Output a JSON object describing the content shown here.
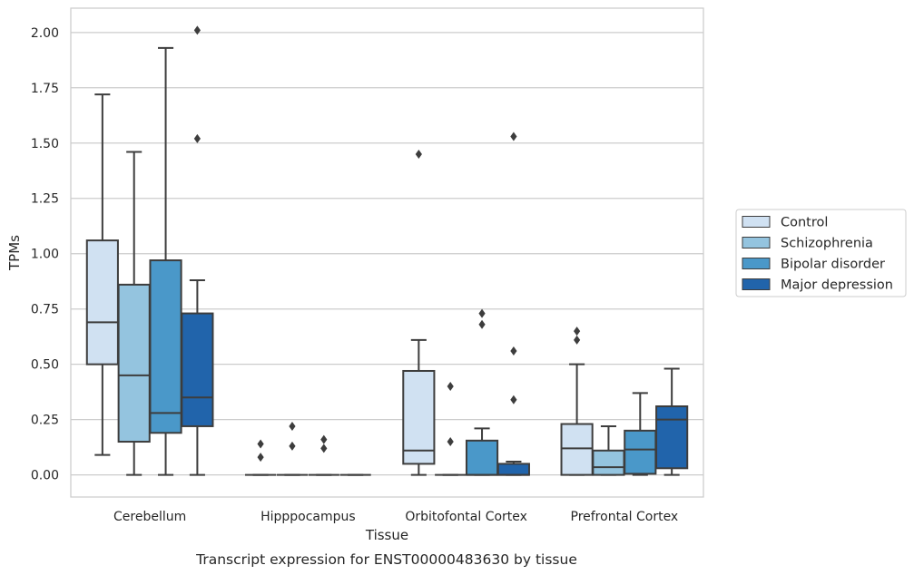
{
  "chart_data": {
    "type": "boxplot",
    "xlabel": "Tissue",
    "ylabel": "TPMs",
    "caption": "Transcript expression for ENST00000483630 by tissue",
    "ylim": [
      -0.1,
      2.11
    ],
    "yticks": [
      0.0,
      0.25,
      0.5,
      0.75,
      1.0,
      1.25,
      1.5,
      1.75,
      2.0
    ],
    "ytick_labels": [
      "0.00",
      "0.25",
      "0.50",
      "0.75",
      "1.00",
      "1.25",
      "1.50",
      "1.75",
      "2.00"
    ],
    "grid": "horizontal",
    "legend_position": "right",
    "categories": [
      "Cerebellum",
      "Hipppocampus",
      "Orbitofontal Cortex",
      "Prefrontal Cortex"
    ],
    "series": [
      {
        "name": "Control",
        "color": "#d0e1f2",
        "boxes": [
          {
            "whislo": 0.09,
            "q1": 0.5,
            "med": 0.69,
            "q3": 1.06,
            "whishi": 1.72,
            "fliers": []
          },
          {
            "whislo": 0.0,
            "q1": 0.0,
            "med": 0.0,
            "q3": 0.0,
            "whishi": 0.0,
            "fliers": [
              0.08,
              0.14
            ]
          },
          {
            "whislo": 0.0,
            "q1": 0.05,
            "med": 0.11,
            "q3": 0.47,
            "whishi": 0.61,
            "fliers": [
              1.45
            ]
          },
          {
            "whislo": 0.0,
            "q1": 0.0,
            "med": 0.12,
            "q3": 0.23,
            "whishi": 0.5,
            "fliers": [
              0.61,
              0.65
            ]
          }
        ]
      },
      {
        "name": "Schizophrenia",
        "color": "#94c4df",
        "boxes": [
          {
            "whislo": 0.0,
            "q1": 0.15,
            "med": 0.45,
            "q3": 0.86,
            "whishi": 1.46,
            "fliers": []
          },
          {
            "whislo": 0.0,
            "q1": 0.0,
            "med": 0.0,
            "q3": 0.0,
            "whishi": 0.0,
            "fliers": [
              0.13,
              0.22
            ]
          },
          {
            "whislo": 0.0,
            "q1": 0.0,
            "med": 0.0,
            "q3": 0.0,
            "whishi": 0.0,
            "fliers": [
              0.15,
              0.4
            ]
          },
          {
            "whislo": 0.0,
            "q1": 0.0,
            "med": 0.035,
            "q3": 0.11,
            "whishi": 0.22,
            "fliers": []
          }
        ]
      },
      {
        "name": "Bipolar disorder",
        "color": "#4a98c9",
        "boxes": [
          {
            "whislo": 0.0,
            "q1": 0.19,
            "med": 0.28,
            "q3": 0.97,
            "whishi": 1.93,
            "fliers": []
          },
          {
            "whislo": 0.0,
            "q1": 0.0,
            "med": 0.0,
            "q3": 0.0,
            "whishi": 0.0,
            "fliers": [
              0.12,
              0.16
            ]
          },
          {
            "whislo": 0.0,
            "q1": 0.0,
            "med": 0.0,
            "q3": 0.155,
            "whishi": 0.21,
            "fliers": [
              0.68,
              0.73
            ]
          },
          {
            "whislo": 0.0,
            "q1": 0.005,
            "med": 0.115,
            "q3": 0.2,
            "whishi": 0.37,
            "fliers": []
          }
        ]
      },
      {
        "name": "Major depression",
        "color": "#2164ab",
        "boxes": [
          {
            "whislo": 0.0,
            "q1": 0.22,
            "med": 0.35,
            "q3": 0.73,
            "whishi": 0.88,
            "fliers": [
              1.52,
              2.01
            ]
          },
          {
            "whislo": 0.0,
            "q1": 0.0,
            "med": 0.0,
            "q3": 0.0,
            "whishi": 0.0,
            "fliers": []
          },
          {
            "whislo": 0.0,
            "q1": 0.0,
            "med": 0.0,
            "q3": 0.05,
            "whishi": 0.06,
            "fliers": [
              0.34,
              0.56,
              1.53
            ]
          },
          {
            "whislo": 0.0,
            "q1": 0.03,
            "med": 0.25,
            "q3": 0.31,
            "whishi": 0.48,
            "fliers": []
          }
        ]
      }
    ]
  }
}
